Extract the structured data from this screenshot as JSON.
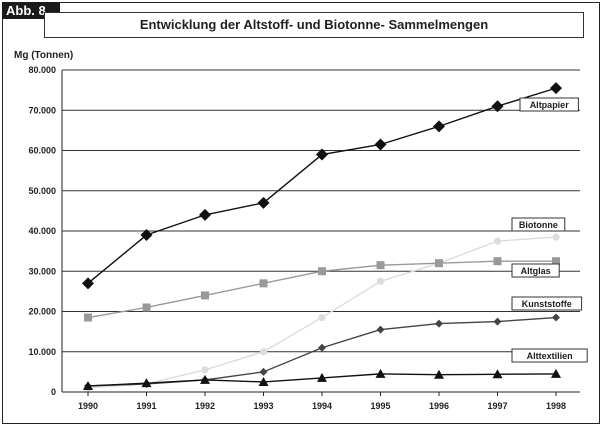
{
  "badge": "Abb. 8",
  "chart_data": {
    "type": "line",
    "title": "Entwicklung der Altstoff- und Biotonne- Sammelmengen",
    "ylabel": "Mg (Tonnen)",
    "xlabel": "",
    "ylim": [
      0,
      80000
    ],
    "yticks": [
      0,
      10000,
      20000,
      30000,
      40000,
      50000,
      60000,
      70000,
      80000
    ],
    "ytick_labels": [
      "0",
      "10.000",
      "20.000",
      "30.000",
      "40.000",
      "50.000",
      "60.000",
      "70.000",
      "80.000"
    ],
    "grid": "horizontal",
    "x": [
      "1990",
      "1991",
      "1992",
      "1993",
      "1994",
      "1995",
      "1996",
      "1997",
      "1998"
    ],
    "series": [
      {
        "name": "Altpapier",
        "color": "#111111",
        "marker": "diamond-large",
        "values": [
          27000,
          39000,
          44000,
          47000,
          59000,
          61500,
          66000,
          71000,
          75500
        ]
      },
      {
        "name": "Biotonne",
        "color": "#dcdcdc",
        "marker": "circle",
        "values": [
          1000,
          2000,
          5500,
          10000,
          18500,
          27500,
          32000,
          37500,
          38500
        ]
      },
      {
        "name": "Altglas",
        "color": "#999999",
        "marker": "square",
        "values": [
          18500,
          21000,
          24000,
          27000,
          30000,
          31500,
          32000,
          32500,
          32500
        ]
      },
      {
        "name": "Kunststoffe",
        "color": "#444444",
        "marker": "diamond",
        "values": [
          1500,
          2000,
          3000,
          5000,
          11000,
          15500,
          17000,
          17500,
          18500
        ]
      },
      {
        "name": "Alttextilien",
        "color": "#111111",
        "marker": "triangle",
        "values": [
          1500,
          2200,
          3000,
          2500,
          3500,
          4500,
          4300,
          4400,
          4500
        ]
      }
    ]
  }
}
